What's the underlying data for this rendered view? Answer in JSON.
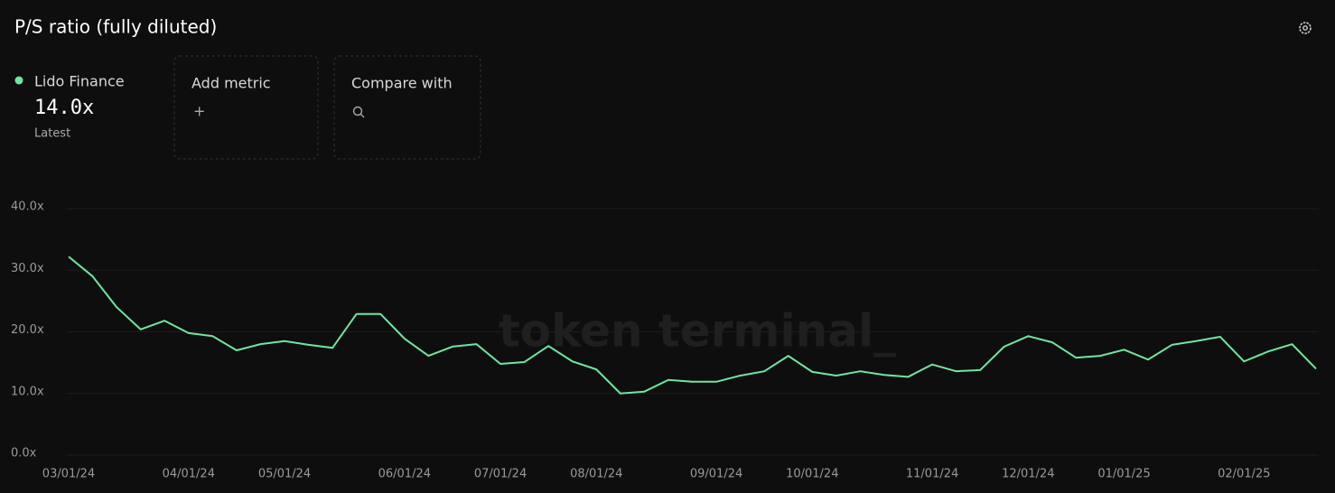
{
  "chart_data": {
    "type": "line",
    "title": "P/S ratio (fully diluted)",
    "watermark": "token terminal_",
    "categories": [
      "03/01/24",
      null,
      null,
      null,
      null,
      "04/01/24",
      null,
      null,
      null,
      "05/01/24",
      null,
      null,
      null,
      null,
      "06/01/24",
      null,
      null,
      null,
      "07/01/24",
      null,
      null,
      null,
      "08/01/24",
      null,
      null,
      null,
      null,
      "09/01/24",
      null,
      null,
      null,
      "10/01/24",
      null,
      null,
      null,
      null,
      "11/01/24",
      null,
      null,
      null,
      "12/01/24",
      null,
      null,
      null,
      "01/01/25",
      null,
      null,
      null,
      null,
      "02/01/25",
      null,
      null,
      null
    ],
    "series": [
      {
        "name": "Lido Finance",
        "color": "#6ee7a0",
        "values": [
          32.2,
          29.0,
          24.0,
          20.4,
          21.8,
          19.8,
          19.3,
          17.0,
          18.0,
          18.5,
          17.9,
          17.4,
          22.9,
          22.9,
          18.9,
          16.1,
          17.6,
          18.0,
          14.8,
          15.1,
          17.7,
          15.2,
          13.9,
          10.0,
          10.3,
          12.2,
          11.9,
          11.9,
          12.9,
          13.6,
          16.1,
          13.5,
          12.9,
          13.6,
          13.0,
          12.7,
          14.7,
          13.6,
          13.8,
          17.6,
          19.3,
          18.3,
          15.8,
          16.1,
          17.1,
          15.5,
          17.9,
          18.5,
          19.2,
          15.2,
          16.8,
          18.0,
          14.0
        ]
      }
    ],
    "ylim": [
      0,
      40
    ],
    "yticks": [
      {
        "value": 0,
        "label": "0.0x"
      },
      {
        "value": 10,
        "label": "10.0x"
      },
      {
        "value": 20,
        "label": "20.0x"
      },
      {
        "value": 30,
        "label": "30.0x"
      },
      {
        "value": 40,
        "label": "40.0x"
      }
    ],
    "grid": true,
    "legend": {
      "latest_value": "14.0x",
      "latest_label": "Latest"
    }
  },
  "ui": {
    "add_metric": "Add metric",
    "add_icon": "+",
    "compare_with": "Compare with"
  }
}
